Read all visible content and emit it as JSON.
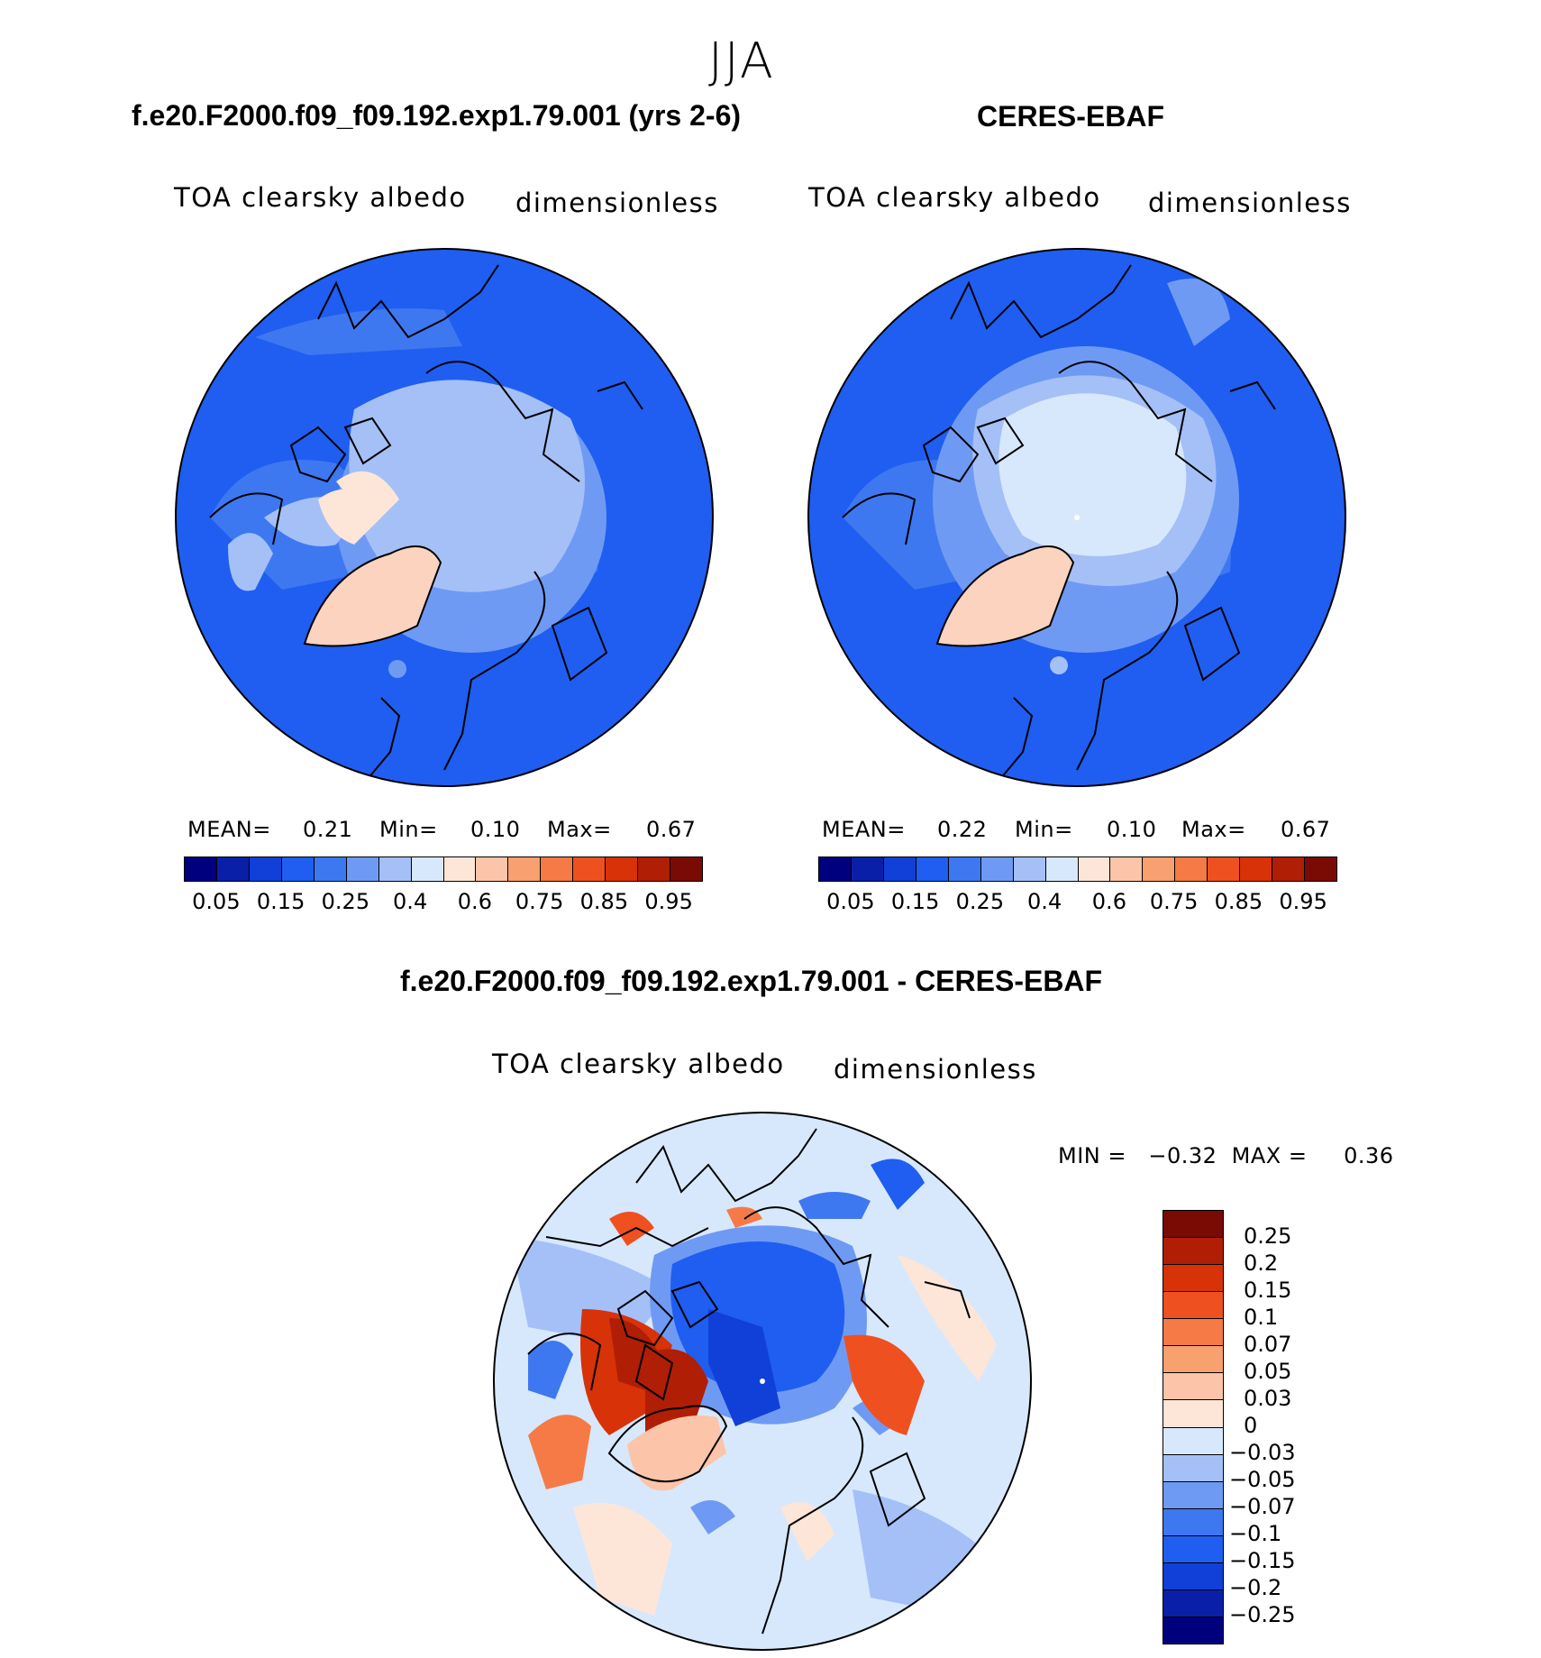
{
  "season": "JJA",
  "panel1": {
    "title": "f.e20.F2000.f09_f09.192.exp1.79.001 (yrs 2-6)",
    "variable": "TOA clearsky albedo",
    "units": "dimensionless",
    "mean_label": "MEAN=",
    "mean": "0.21",
    "min_label": "Min=",
    "min": "0.10",
    "max_label": "Max=",
    "max": "0.67"
  },
  "panel2": {
    "title": "CERES-EBAF",
    "variable": "TOA clearsky albedo",
    "units": "dimensionless",
    "mean_label": "MEAN=",
    "mean": "0.22",
    "min_label": "Min=",
    "min": "0.10",
    "max_label": "Max=",
    "max": "0.67"
  },
  "panel3": {
    "title": "f.e20.F2000.f09_f09.192.exp1.79.001 - CERES-EBAF",
    "variable": "TOA clearsky albedo",
    "units": "dimensionless",
    "minmax_text": "MIN =   −0.32  MAX =     0.36"
  },
  "colorbar_abs": {
    "colors": [
      "#00007f",
      "#0a1fa8",
      "#1040d8",
      "#1f5ef0",
      "#3e78f0",
      "#6f9af4",
      "#a4c0f7",
      "#d8e8fc",
      "#fde6d8",
      "#fcc4a8",
      "#f8a070",
      "#f57a45",
      "#ef5020",
      "#d83208",
      "#b01e06",
      "#7a0a04"
    ],
    "labels": [
      "0.05",
      "0.15",
      "0.25",
      "0.4",
      "0.6",
      "0.75",
      "0.85",
      "0.95"
    ]
  },
  "colorbar_diff": {
    "colors": [
      "#7a0a04",
      "#b01e06",
      "#d83208",
      "#ef5020",
      "#f57a45",
      "#f8a070",
      "#fcc4a8",
      "#fde6d8",
      "#d8e8fc",
      "#a4c0f7",
      "#6f9af4",
      "#3e78f0",
      "#1f5ef0",
      "#1040d8",
      "#0a1fa8",
      "#00007f"
    ],
    "labels": [
      "0.25",
      "0.2",
      "0.15",
      "0.1",
      "0.07",
      "0.05",
      "0.03",
      "0",
      "−0.03",
      "−0.05",
      "−0.07",
      "−0.1",
      "−0.15",
      "−0.2",
      "−0.25"
    ]
  }
}
